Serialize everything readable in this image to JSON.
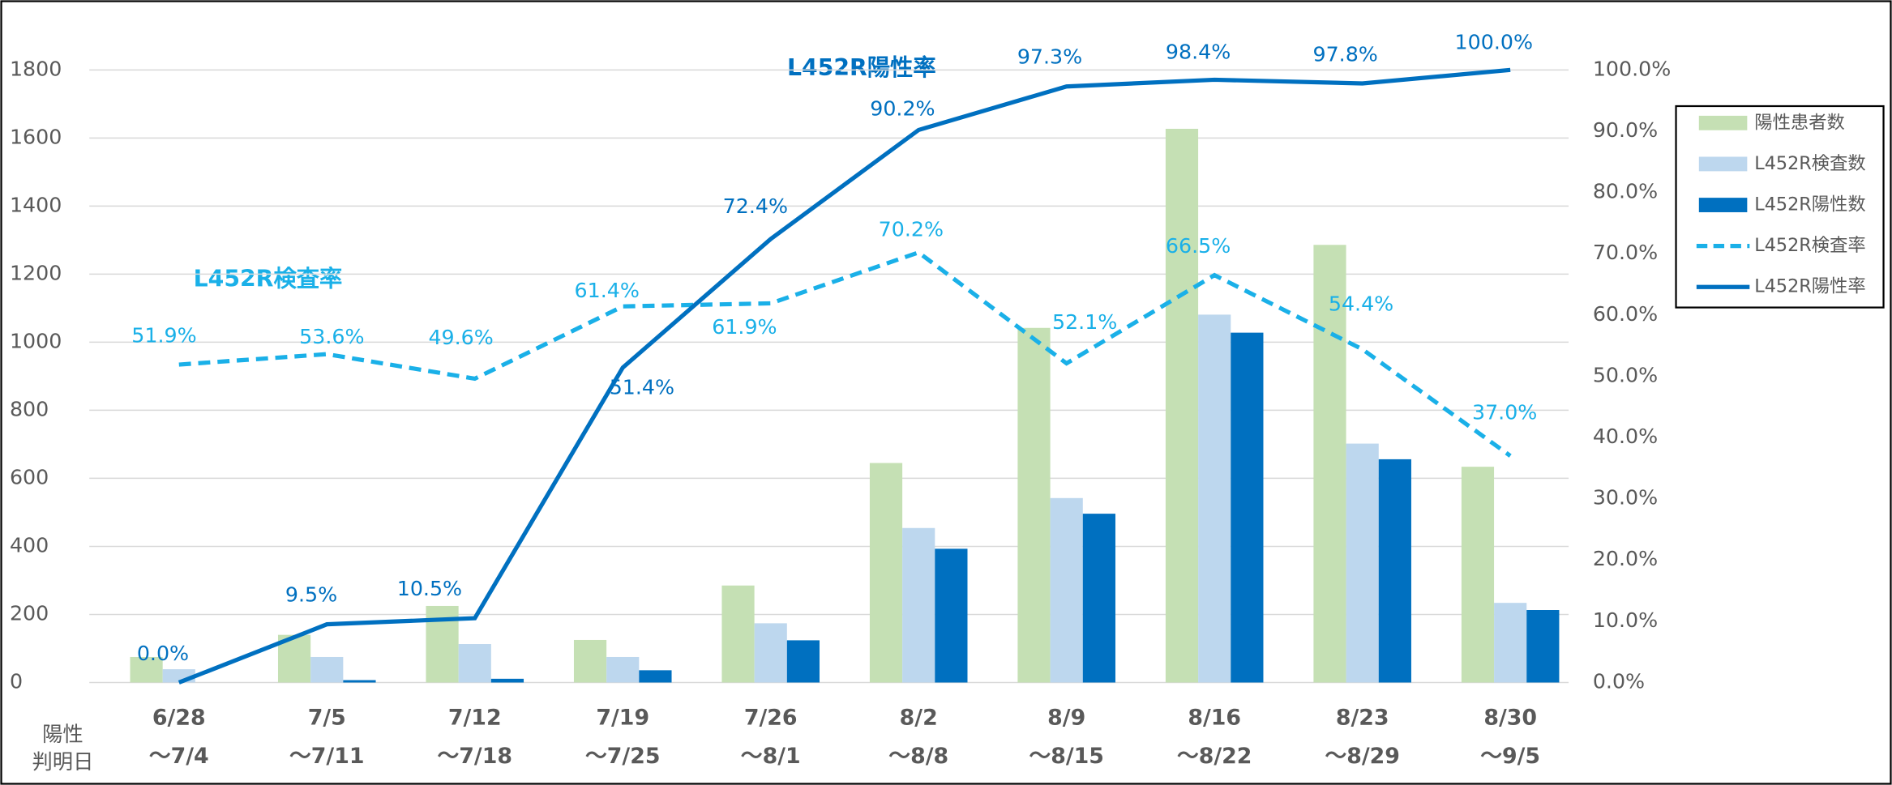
{
  "chart_data": {
    "type": "bar_line",
    "annotations": [
      "L452R陽性率",
      "L452R検査率"
    ],
    "x_label": [
      "陽性",
      "判明日"
    ],
    "categories": [
      [
        "6/28",
        "～7/4"
      ],
      [
        "7/5",
        "～7/11"
      ],
      [
        "7/12",
        "～7/18"
      ],
      [
        "7/19",
        "～7/25"
      ],
      [
        "7/26",
        "～8/1"
      ],
      [
        "8/2",
        "～8/8"
      ],
      [
        "8/9",
        "～8/15"
      ],
      [
        "8/16",
        "～8/22"
      ],
      [
        "8/23",
        "～8/29"
      ],
      [
        "8/30",
        "～9/5"
      ]
    ],
    "series": [
      {
        "name": "陽性患者数",
        "color": "#c5e0b4",
        "kind": "bar",
        "values": [
          75,
          140,
          225,
          125,
          285,
          645,
          1042,
          1627,
          1286,
          634
        ]
      },
      {
        "name": "L452R検査数",
        "color": "#bdd7ee",
        "kind": "bar",
        "values": [
          39,
          75,
          113,
          75,
          174,
          454,
          542,
          1081,
          702,
          234
        ]
      },
      {
        "name": "L452R陽性数",
        "color": "#0070c0",
        "kind": "bar",
        "values": [
          0,
          7,
          11,
          36,
          124,
          393,
          496,
          1028,
          656,
          213
        ]
      },
      {
        "name": "L452R検査率",
        "color": "#1ab0e8",
        "kind": "line",
        "dash": true,
        "axis": "y2",
        "values": [
          51.9,
          53.6,
          49.6,
          61.4,
          61.9,
          70.2,
          52.1,
          66.5,
          54.4,
          37.0
        ],
        "value_labels": [
          "51.9%",
          "53.6%",
          "49.6%",
          "61.4%",
          "61.9%",
          "70.2%",
          "52.1%",
          "66.5%",
          "54.4%",
          "37.0%"
        ]
      },
      {
        "name": "L452R陽性率",
        "color": "#0070c0",
        "kind": "line",
        "axis": "y2",
        "values": [
          0.0,
          9.5,
          10.5,
          51.4,
          72.4,
          90.2,
          97.3,
          98.4,
          97.8,
          100.0
        ],
        "value_labels": [
          "0.0%",
          "9.5%",
          "10.5%",
          "51.4%",
          "72.4%",
          "90.2%",
          "97.3%",
          "98.4%",
          "97.8%",
          "100.0%"
        ]
      }
    ],
    "ylim": [
      0,
      1800
    ],
    "yticks": [
      0,
      200,
      400,
      600,
      800,
      1000,
      1200,
      1400,
      1600,
      1800
    ],
    "y2lim": [
      0,
      100
    ],
    "y2ticks": [
      {
        "value": 0,
        "label": "0.0%"
      },
      {
        "value": 10,
        "label": "10.0%"
      },
      {
        "value": 20,
        "label": "20.0%"
      },
      {
        "value": 30,
        "label": "30.0%"
      },
      {
        "value": 40,
        "label": "40.0%"
      },
      {
        "value": 50,
        "label": "50.0%"
      },
      {
        "value": 60,
        "label": "60.0%"
      },
      {
        "value": 70,
        "label": "70.0%"
      },
      {
        "value": 80,
        "label": "80.0%"
      },
      {
        "value": 90,
        "label": "90.0%"
      },
      {
        "value": 100,
        "label": "100.0%"
      }
    ],
    "grid": true,
    "legend": "right"
  }
}
